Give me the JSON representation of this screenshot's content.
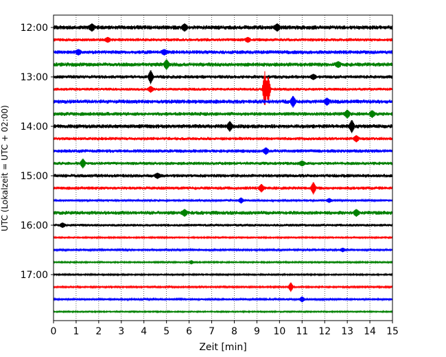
{
  "chart_data": {
    "type": "line",
    "title": "",
    "xlabel": "Zeit  [min]",
    "ylabel": "UTC (Lokalzeit = UTC + 02:00)",
    "xlim": [
      0,
      15
    ],
    "x_ticks": [
      0,
      1,
      2,
      3,
      4,
      5,
      6,
      7,
      8,
      9,
      10,
      11,
      12,
      13,
      14,
      15
    ],
    "y_tick_labels": [
      "12:00",
      "13:00",
      "14:00",
      "15:00",
      "16:00",
      "17:00"
    ],
    "y_tick_rows": [
      0,
      4,
      8,
      12,
      16,
      20
    ],
    "vertical_grid": true,
    "grid_style": "dotted",
    "minutes_per_row": 15,
    "color_cycle": [
      "#000000",
      "#ff0000",
      "#0000ff",
      "#008000"
    ],
    "series": [
      {
        "start": "12:00",
        "color": "#000000",
        "noise": 3.2,
        "events": [
          {
            "x": 1.7,
            "amp": 3
          },
          {
            "x": 5.8,
            "amp": 3
          },
          {
            "x": 9.9,
            "amp": 3
          }
        ]
      },
      {
        "start": "12:15",
        "color": "#ff0000",
        "noise": 2.4,
        "events": [
          {
            "x": 2.4,
            "amp": 2
          },
          {
            "x": 8.6,
            "amp": 2
          }
        ]
      },
      {
        "start": "12:30",
        "color": "#0000ff",
        "noise": 2.8,
        "events": [
          {
            "x": 1.1,
            "amp": 2
          },
          {
            "x": 4.9,
            "amp": 2
          }
        ]
      },
      {
        "start": "12:45",
        "color": "#008000",
        "noise": 3.0,
        "events": [
          {
            "x": 5.0,
            "amp": 5
          },
          {
            "x": 12.6,
            "amp": 2
          }
        ]
      },
      {
        "start": "13:00",
        "color": "#000000",
        "noise": 2.6,
        "events": [
          {
            "x": 4.3,
            "amp": 8
          },
          {
            "x": 11.5,
            "amp": 2
          }
        ]
      },
      {
        "start": "13:15",
        "color": "#ff0000",
        "noise": 2.2,
        "events": [
          {
            "x": 4.3,
            "amp": 3
          },
          {
            "x": 9.35,
            "amp": 24
          },
          {
            "x": 9.5,
            "amp": 18
          }
        ]
      },
      {
        "start": "13:30",
        "color": "#0000ff",
        "noise": 3.0,
        "events": [
          {
            "x": 10.6,
            "amp": 6
          },
          {
            "x": 12.1,
            "amp": 3
          }
        ]
      },
      {
        "start": "13:45",
        "color": "#008000",
        "noise": 2.8,
        "events": [
          {
            "x": 13.0,
            "amp": 4
          },
          {
            "x": 14.1,
            "amp": 3
          }
        ]
      },
      {
        "start": "14:00",
        "color": "#000000",
        "noise": 3.0,
        "events": [
          {
            "x": 7.8,
            "amp": 5
          },
          {
            "x": 13.2,
            "amp": 7
          }
        ]
      },
      {
        "start": "14:15",
        "color": "#ff0000",
        "noise": 2.4,
        "events": [
          {
            "x": 13.4,
            "amp": 3
          }
        ]
      },
      {
        "start": "14:30",
        "color": "#0000ff",
        "noise": 2.6,
        "events": [
          {
            "x": 9.4,
            "amp": 3
          }
        ]
      },
      {
        "start": "14:45",
        "color": "#008000",
        "noise": 2.4,
        "events": [
          {
            "x": 1.3,
            "amp": 5
          },
          {
            "x": 11.0,
            "amp": 2
          }
        ]
      },
      {
        "start": "15:00",
        "color": "#000000",
        "noise": 2.6,
        "events": [
          {
            "x": 4.6,
            "amp": 2
          }
        ]
      },
      {
        "start": "15:15",
        "color": "#ff0000",
        "noise": 2.4,
        "events": [
          {
            "x": 9.2,
            "amp": 4
          },
          {
            "x": 11.5,
            "amp": 7
          }
        ]
      },
      {
        "start": "15:30",
        "color": "#0000ff",
        "noise": 1.6,
        "events": [
          {
            "x": 8.3,
            "amp": 3
          },
          {
            "x": 12.2,
            "amp": 2
          }
        ]
      },
      {
        "start": "15:45",
        "color": "#008000",
        "noise": 2.8,
        "events": [
          {
            "x": 5.8,
            "amp": 3
          },
          {
            "x": 13.4,
            "amp": 3
          }
        ]
      },
      {
        "start": "16:00",
        "color": "#000000",
        "noise": 2.0,
        "events": [
          {
            "x": 0.4,
            "amp": 2
          }
        ]
      },
      {
        "start": "16:15",
        "color": "#ff0000",
        "noise": 1.1,
        "events": []
      },
      {
        "start": "16:30",
        "color": "#0000ff",
        "noise": 1.4,
        "events": [
          {
            "x": 12.8,
            "amp": 2
          }
        ]
      },
      {
        "start": "16:45",
        "color": "#008000",
        "noise": 1.1,
        "events": [
          {
            "x": 6.1,
            "amp": 2
          }
        ]
      },
      {
        "start": "17:00",
        "color": "#000000",
        "noise": 1.1,
        "events": []
      },
      {
        "start": "17:15",
        "color": "#ff0000",
        "noise": 1.2,
        "events": [
          {
            "x": 10.5,
            "amp": 6
          }
        ]
      },
      {
        "start": "17:30",
        "color": "#0000ff",
        "noise": 1.5,
        "events": [
          {
            "x": 11.0,
            "amp": 3
          }
        ]
      },
      {
        "start": "17:45",
        "color": "#008000",
        "noise": 1.0,
        "events": []
      }
    ]
  }
}
